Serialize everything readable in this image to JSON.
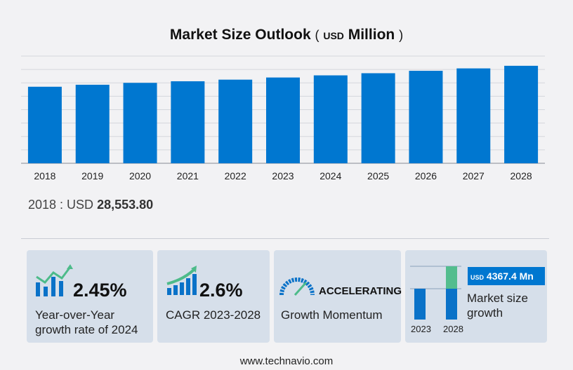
{
  "chart_data": {
    "type": "bar",
    "title": "Market Size Outlook",
    "unit_prefix": "USD",
    "unit": "Million",
    "categories": [
      "2018",
      "2019",
      "2020",
      "2021",
      "2022",
      "2023",
      "2024",
      "2025",
      "2026",
      "2027",
      "2028"
    ],
    "values": [
      28553.8,
      29300,
      30000,
      30600,
      31200,
      32000,
      32800,
      33600,
      34500,
      35400,
      36370
    ],
    "ylim": [
      0,
      40000
    ],
    "grid": true,
    "bar_color": "#0077d0"
  },
  "summary": {
    "label": "2018 : USD",
    "value": "28,553.80"
  },
  "cards": {
    "yoy": {
      "value": "2.45%",
      "desc1": "Year-over-Year",
      "desc2": "growth rate of 2024"
    },
    "cagr": {
      "value": "2.6%",
      "desc": "CAGR 2023-2028"
    },
    "momentum": {
      "value": "ACCELERATING",
      "desc": "Growth Momentum"
    },
    "growth": {
      "badge_unit": "USD",
      "badge_value": "4367.4 Mn",
      "desc1": "Market size",
      "desc2": "growth",
      "year_start": "2023",
      "year_end": "2028"
    }
  },
  "footer": "www.technavio.com"
}
